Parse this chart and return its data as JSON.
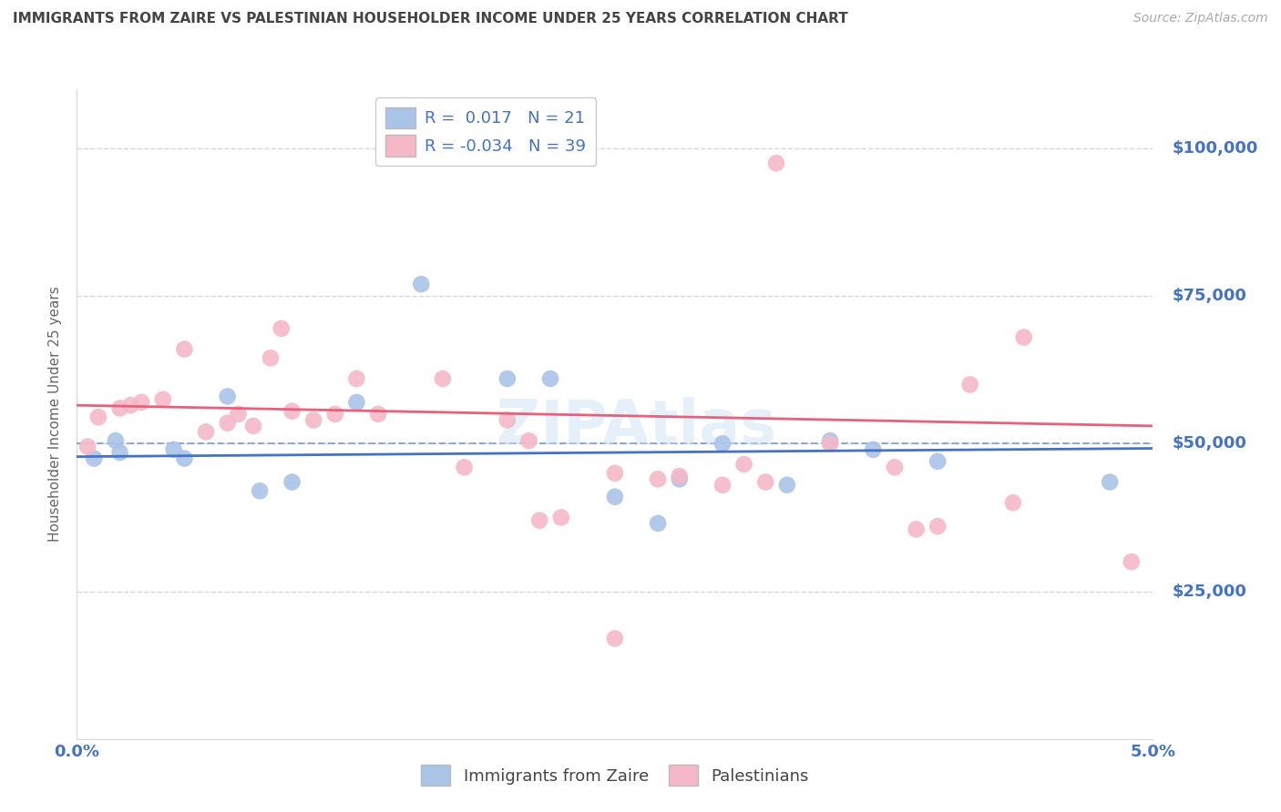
{
  "title": "IMMIGRANTS FROM ZAIRE VS PALESTINIAN HOUSEHOLDER INCOME UNDER 25 YEARS CORRELATION CHART",
  "source": "Source: ZipAtlas.com",
  "ylabel": "Householder Income Under 25 years",
  "xlim": [
    0.0,
    0.05
  ],
  "ylim": [
    0,
    110000
  ],
  "yticks": [
    0,
    25000,
    50000,
    75000,
    100000
  ],
  "ytick_labels": [
    "",
    "$25,000",
    "$50,000",
    "$75,000",
    "$100,000"
  ],
  "legend_label_blue": "Immigrants from Zaire",
  "legend_label_pink": "Palestinians",
  "watermark": "ZIPAtlas",
  "blue_fill": "#aac4e8",
  "pink_fill": "#f5b8c8",
  "blue_line_color": "#4472c4",
  "pink_line_color": "#e8607a",
  "axis_label_color": "#4472c4",
  "title_color": "#444444",
  "grid_color": "#d8d8d8",
  "blue_scatter": [
    [
      0.0008,
      47500
    ],
    [
      0.0018,
      50500
    ],
    [
      0.002,
      48500
    ],
    [
      0.0045,
      49000
    ],
    [
      0.005,
      47500
    ],
    [
      0.007,
      58000
    ],
    [
      0.0085,
      42000
    ],
    [
      0.01,
      43500
    ],
    [
      0.013,
      57000
    ],
    [
      0.016,
      77000
    ],
    [
      0.02,
      61000
    ],
    [
      0.022,
      61000
    ],
    [
      0.025,
      41000
    ],
    [
      0.027,
      36500
    ],
    [
      0.028,
      44000
    ],
    [
      0.03,
      50000
    ],
    [
      0.033,
      43000
    ],
    [
      0.035,
      50500
    ],
    [
      0.037,
      49000
    ],
    [
      0.04,
      47000
    ],
    [
      0.048,
      43500
    ]
  ],
  "pink_scatter": [
    [
      0.0005,
      49500
    ],
    [
      0.001,
      54500
    ],
    [
      0.002,
      56000
    ],
    [
      0.0025,
      56500
    ],
    [
      0.003,
      57000
    ],
    [
      0.004,
      57500
    ],
    [
      0.005,
      66000
    ],
    [
      0.006,
      52000
    ],
    [
      0.007,
      53500
    ],
    [
      0.0075,
      55000
    ],
    [
      0.0082,
      53000
    ],
    [
      0.009,
      64500
    ],
    [
      0.0095,
      69500
    ],
    [
      0.01,
      55500
    ],
    [
      0.011,
      54000
    ],
    [
      0.012,
      55000
    ],
    [
      0.013,
      61000
    ],
    [
      0.014,
      55000
    ],
    [
      0.017,
      61000
    ],
    [
      0.018,
      46000
    ],
    [
      0.02,
      54000
    ],
    [
      0.021,
      50500
    ],
    [
      0.0215,
      37000
    ],
    [
      0.0225,
      37500
    ],
    [
      0.025,
      45000
    ],
    [
      0.027,
      44000
    ],
    [
      0.028,
      44500
    ],
    [
      0.03,
      43000
    ],
    [
      0.031,
      46500
    ],
    [
      0.032,
      43500
    ],
    [
      0.0325,
      97500
    ],
    [
      0.035,
      50000
    ],
    [
      0.038,
      46000
    ],
    [
      0.039,
      35500
    ],
    [
      0.04,
      36000
    ],
    [
      0.0415,
      60000
    ],
    [
      0.0435,
      40000
    ],
    [
      0.044,
      68000
    ],
    [
      0.049,
      30000
    ]
  ],
  "pink_low_point": [
    0.025,
    17000
  ],
  "blue_trend": [
    0.0,
    47800,
    0.05,
    49200
  ],
  "pink_trend": [
    0.0,
    56500,
    0.05,
    53000
  ]
}
